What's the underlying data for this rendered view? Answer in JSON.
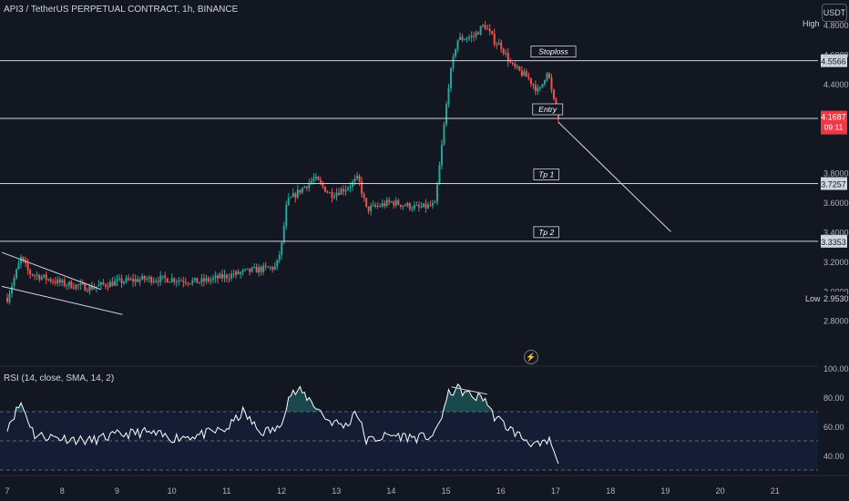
{
  "header": {
    "title": "API3 / TetherUS PERPETUAL CONTRACT, 1h, BINANCE"
  },
  "currency_button": "USDT",
  "rsi": {
    "title": "RSI (14, close, SMA, 14, 2)"
  },
  "colors": {
    "background": "#131722",
    "up": "#26a69a",
    "down": "#ef5350",
    "line": "#ffffff",
    "current_price": "#f23645",
    "rsi_fill": "#2962ff"
  },
  "icons": {
    "lightning": "lightning-icon"
  },
  "chart_data": [
    {
      "type": "candlestick",
      "title": "API3 / TetherUS PERPETUAL CONTRACT, 1h, BINANCE",
      "xlabel": "",
      "ylabel": "",
      "x_ticks": [
        "7",
        "8",
        "9",
        "10",
        "11",
        "12",
        "13",
        "14",
        "15",
        "16",
        "17",
        "18",
        "19",
        "20",
        "21"
      ],
      "y_ticks": [
        "2.8000",
        "3.0000",
        "3.2000",
        "3.4000",
        "3.6000",
        "3.8000",
        "4.4000",
        "4.6000",
        "4.8000"
      ],
      "ylim": [
        2.74,
        4.9
      ],
      "grid": false,
      "extremes": {
        "high_label": "High",
        "low_label": "Low",
        "low": "2.9530"
      },
      "ohlc_anchors": [
        {
          "x": 0.0,
          "p": 2.95
        },
        {
          "x": 0.25,
          "p": 3.22
        },
        {
          "x": 0.4,
          "p": 3.12
        },
        {
          "x": 1.0,
          "p": 3.05
        },
        {
          "x": 1.5,
          "p": 3.02
        },
        {
          "x": 2.0,
          "p": 3.06
        },
        {
          "x": 2.5,
          "p": 3.08
        },
        {
          "x": 3.0,
          "p": 3.08
        },
        {
          "x": 3.5,
          "p": 3.06
        },
        {
          "x": 4.0,
          "p": 3.1
        },
        {
          "x": 4.5,
          "p": 3.14
        },
        {
          "x": 4.9,
          "p": 3.16
        },
        {
          "x": 5.0,
          "p": 3.3
        },
        {
          "x": 5.1,
          "p": 3.6
        },
        {
          "x": 5.4,
          "p": 3.7
        },
        {
          "x": 5.6,
          "p": 3.76
        },
        {
          "x": 5.9,
          "p": 3.65
        },
        {
          "x": 6.2,
          "p": 3.7
        },
        {
          "x": 6.4,
          "p": 3.76
        },
        {
          "x": 6.55,
          "p": 3.55
        },
        {
          "x": 7.0,
          "p": 3.6
        },
        {
          "x": 7.5,
          "p": 3.56
        },
        {
          "x": 7.8,
          "p": 3.58
        },
        {
          "x": 7.9,
          "p": 3.9
        },
        {
          "x": 8.05,
          "p": 4.4
        },
        {
          "x": 8.2,
          "p": 4.7
        },
        {
          "x": 8.5,
          "p": 4.72
        },
        {
          "x": 8.7,
          "p": 4.8
        },
        {
          "x": 8.9,
          "p": 4.68
        },
        {
          "x": 9.0,
          "p": 4.66
        },
        {
          "x": 9.2,
          "p": 4.52
        },
        {
          "x": 9.5,
          "p": 4.44
        },
        {
          "x": 9.7,
          "p": 4.34
        },
        {
          "x": 9.85,
          "p": 4.5
        },
        {
          "x": 9.95,
          "p": 4.3
        },
        {
          "x": 10.05,
          "p": 4.17
        }
      ],
      "horizontal_levels": [
        {
          "name": "Stoploss",
          "price": "4.5566",
          "label": "Stoploss"
        },
        {
          "name": "Entry",
          "price": "4.1662",
          "label": "Entry"
        },
        {
          "name": "Tp 1",
          "price": "3.7257",
          "label": "Tp 1"
        },
        {
          "name": "Tp 2",
          "price": "3.3353",
          "label": "Tp 2"
        }
      ],
      "current_price": {
        "price": "4.1687",
        "countdown": "09:11"
      },
      "trendlines": [
        {
          "from": {
            "x": -0.1,
            "p": 3.26
          },
          "to": {
            "x": 1.7,
            "p": 3.01
          }
        },
        {
          "from": {
            "x": -0.1,
            "p": 3.03
          },
          "to": {
            "x": 2.1,
            "p": 2.84
          }
        },
        {
          "from": {
            "x": 10.05,
            "p": 4.14
          },
          "to": {
            "x": 12.1,
            "p": 3.4
          }
        }
      ]
    },
    {
      "type": "line",
      "title": "RSI (14, close, SMA, 14, 2)",
      "xlabel": "",
      "ylabel": "",
      "y_ticks": [
        "40.00",
        "60.00",
        "80.00",
        "100.00"
      ],
      "ylim": [
        30,
        100
      ],
      "bands": {
        "upper": 70,
        "middle": 50,
        "lower": 30
      },
      "rsi_anchors": [
        {
          "x": 0.0,
          "v": 60
        },
        {
          "x": 0.25,
          "v": 76
        },
        {
          "x": 0.5,
          "v": 54
        },
        {
          "x": 1.0,
          "v": 52
        },
        {
          "x": 1.5,
          "v": 50
        },
        {
          "x": 2.0,
          "v": 54
        },
        {
          "x": 2.5,
          "v": 56
        },
        {
          "x": 3.0,
          "v": 52
        },
        {
          "x": 3.5,
          "v": 54
        },
        {
          "x": 4.0,
          "v": 58
        },
        {
          "x": 4.3,
          "v": 70
        },
        {
          "x": 4.6,
          "v": 56
        },
        {
          "x": 4.95,
          "v": 58
        },
        {
          "x": 5.15,
          "v": 82
        },
        {
          "x": 5.35,
          "v": 84
        },
        {
          "x": 5.55,
          "v": 77
        },
        {
          "x": 5.85,
          "v": 64
        },
        {
          "x": 6.2,
          "v": 60
        },
        {
          "x": 6.35,
          "v": 72
        },
        {
          "x": 6.55,
          "v": 50
        },
        {
          "x": 7.0,
          "v": 54
        },
        {
          "x": 7.5,
          "v": 52
        },
        {
          "x": 7.8,
          "v": 54
        },
        {
          "x": 8.05,
          "v": 82
        },
        {
          "x": 8.2,
          "v": 86
        },
        {
          "x": 8.5,
          "v": 80
        },
        {
          "x": 8.7,
          "v": 80
        },
        {
          "x": 8.85,
          "v": 68
        },
        {
          "x": 9.1,
          "v": 60
        },
        {
          "x": 9.4,
          "v": 52
        },
        {
          "x": 9.7,
          "v": 46
        },
        {
          "x": 9.9,
          "v": 50
        },
        {
          "x": 10.05,
          "v": 32
        }
      ]
    }
  ]
}
